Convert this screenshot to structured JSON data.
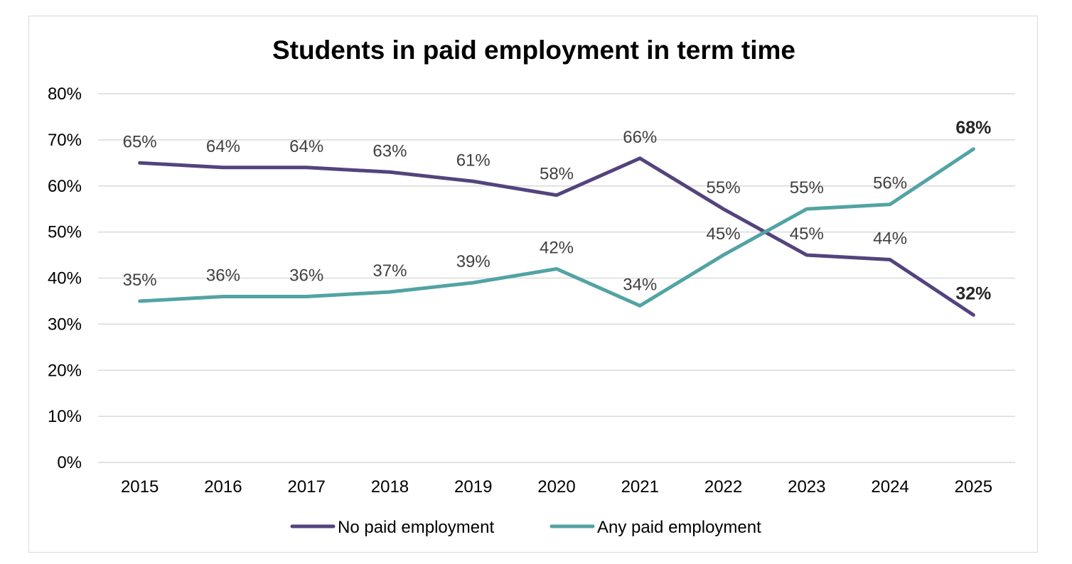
{
  "chart_data": {
    "type": "line",
    "title": "Students in paid employment in term time",
    "categories": [
      "2015",
      "2016",
      "2017",
      "2018",
      "2019",
      "2020",
      "2021",
      "2022",
      "2023",
      "2024",
      "2025"
    ],
    "ylim": [
      0,
      80
    ],
    "yticks": [
      0,
      10,
      20,
      30,
      40,
      50,
      60,
      70,
      80
    ],
    "ytick_labels": [
      "0%",
      "10%",
      "20%",
      "30%",
      "40%",
      "50%",
      "60%",
      "70%",
      "80%"
    ],
    "grid": true,
    "legend_position": "bottom",
    "series": [
      {
        "name": "No paid employment",
        "color": "#54437d",
        "values": [
          65,
          64,
          64,
          63,
          61,
          58,
          66,
          55,
          45,
          44,
          32
        ],
        "labels": [
          "65%",
          "64%",
          "64%",
          "63%",
          "61%",
          "58%",
          "66%",
          "55%",
          "45%",
          "44%",
          "32%"
        ],
        "label_side": [
          "above",
          "above",
          "above",
          "above",
          "above",
          "above",
          "above",
          "above",
          "above",
          "above",
          "above"
        ],
        "bold_last": true
      },
      {
        "name": "Any paid employment",
        "color": "#53a3a3",
        "values": [
          35,
          36,
          36,
          37,
          39,
          42,
          34,
          45,
          55,
          56,
          68
        ],
        "labels": [
          "35%",
          "36%",
          "36%",
          "37%",
          "39%",
          "42%",
          "34%",
          "45%",
          "55%",
          "56%",
          "68%"
        ],
        "label_side": [
          "above",
          "above",
          "above",
          "above",
          "above",
          "above",
          "above",
          "above",
          "above",
          "above",
          "above"
        ],
        "bold_last": true
      }
    ]
  }
}
